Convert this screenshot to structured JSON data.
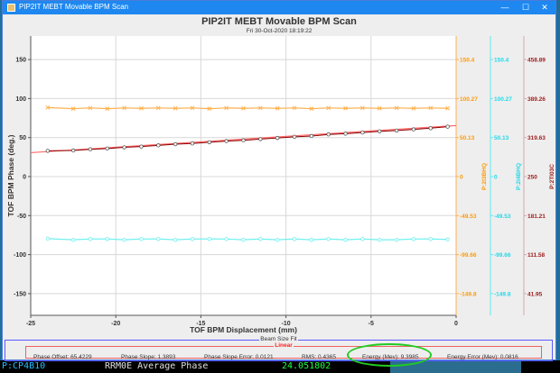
{
  "window": {
    "title": "PIP2IT MEBT Movable BPM Scan",
    "controls": {
      "minimize": "—",
      "maximize": "☐",
      "close": "✕"
    }
  },
  "header": {
    "title": "PIP2IT MEBT Movable BPM Scan",
    "timestamp": "Fri 30-Oct-2020 18:19:22"
  },
  "chart_data": {
    "type": "line",
    "title": "PIP2IT MEBT Movable BPM Scan",
    "subtitle": "Fri 30-Oct-2020 18:19:22",
    "xlabel": "TOF BPM Displacement (mm)",
    "ylabel": "TOF BPM Phase (deg.)",
    "xlim": [
      -25,
      0
    ],
    "ylim": [
      -180,
      180
    ],
    "x_ticks": [
      "-25",
      "-20",
      "-15",
      "-10",
      "-5",
      "0"
    ],
    "y_ticks": [
      "150",
      "100",
      "50",
      "0",
      "-50",
      "-100",
      "-150"
    ],
    "grid": true,
    "right_axes": [
      {
        "name": "P:2I3BHQ",
        "color": "#ffa020",
        "ticks": [
          "150.4",
          "100.27",
          "50.13",
          "0",
          "-49.53",
          "-99.66",
          "-149.8"
        ]
      },
      {
        "name": "P:2I4BHQ",
        "color": "#20d8e8",
        "ticks": [
          "150.4",
          "100.27",
          "50.13",
          "0",
          "-49.53",
          "-99.66",
          "-149.8"
        ]
      },
      {
        "name": "P:2TI03C",
        "color": "#a02020",
        "ticks": [
          "458.89",
          "389.26",
          "319.63",
          "250",
          "181.21",
          "111.58",
          "41.95"
        ]
      }
    ],
    "x": [
      -24,
      -22.5,
      -21.5,
      -20.5,
      -19.5,
      -18.5,
      -17.5,
      -16.5,
      -15.5,
      -14.5,
      -13.5,
      -12.5,
      -11.5,
      -10.5,
      -9.5,
      -8.5,
      -7.5,
      -6.5,
      -5.5,
      -4.5,
      -3.5,
      -2.5,
      -1.5,
      -0.5
    ],
    "series": [
      {
        "name": "P:2I3BHQ",
        "color": "#ffb050",
        "marker": "x",
        "values": [
          88.5,
          87,
          88,
          87,
          88,
          87.5,
          88,
          87.5,
          88,
          87,
          88,
          87.5,
          88,
          87.5,
          88,
          87,
          88,
          87.5,
          88,
          87.5,
          88,
          87.5,
          88,
          87.5
        ]
      },
      {
        "name": "P:2I4BHQ",
        "color": "#70f0f0",
        "marker": "o",
        "values": [
          -79.5,
          -81,
          -80,
          -80,
          -81,
          -80,
          -80,
          -81,
          -80,
          -80,
          -80,
          -81,
          -80,
          -81,
          -80,
          -81,
          -80,
          -81,
          -80,
          -81,
          -81,
          -80,
          -80,
          -80.5
        ]
      },
      {
        "name": "P:2TI03C",
        "color": "#8b0000",
        "marker": "o",
        "values": [
          33,
          33.5,
          35,
          36,
          37.5,
          38.5,
          40,
          41.5,
          42.5,
          44,
          45.5,
          46.5,
          48,
          49.5,
          51,
          52,
          54,
          55,
          56.5,
          58,
          59,
          60.5,
          62,
          64
        ]
      },
      {
        "name": "Linear Fit",
        "color": "#ff6a6a",
        "marker": "none",
        "values_formula": "65.4229 + 1.3893 * x"
      }
    ]
  },
  "fit_panel": {
    "group_label": "Beam Size Fit",
    "subgroup_label": "Linear",
    "items": [
      {
        "label": "Phase Offset: 65.4229"
      },
      {
        "label": "Phase Slope: 1.3893"
      },
      {
        "label": "Phase Slope Error: 0.0121"
      },
      {
        "label": "RMS: 0.4365"
      },
      {
        "label": "Energy (Mev): 9.3985"
      },
      {
        "label": "Energy Error (Mev): 0.0816"
      }
    ],
    "highlight_color": "#22cc22"
  },
  "background_terminal": {
    "texts": [
      {
        "text": "P:CP4B10",
        "color": "#20c0ff"
      },
      {
        "text": "RRM0E  Average  Phase",
        "color": "#e0e0e0"
      },
      {
        "text": "24.051802",
        "color": "#20ff40"
      }
    ]
  }
}
